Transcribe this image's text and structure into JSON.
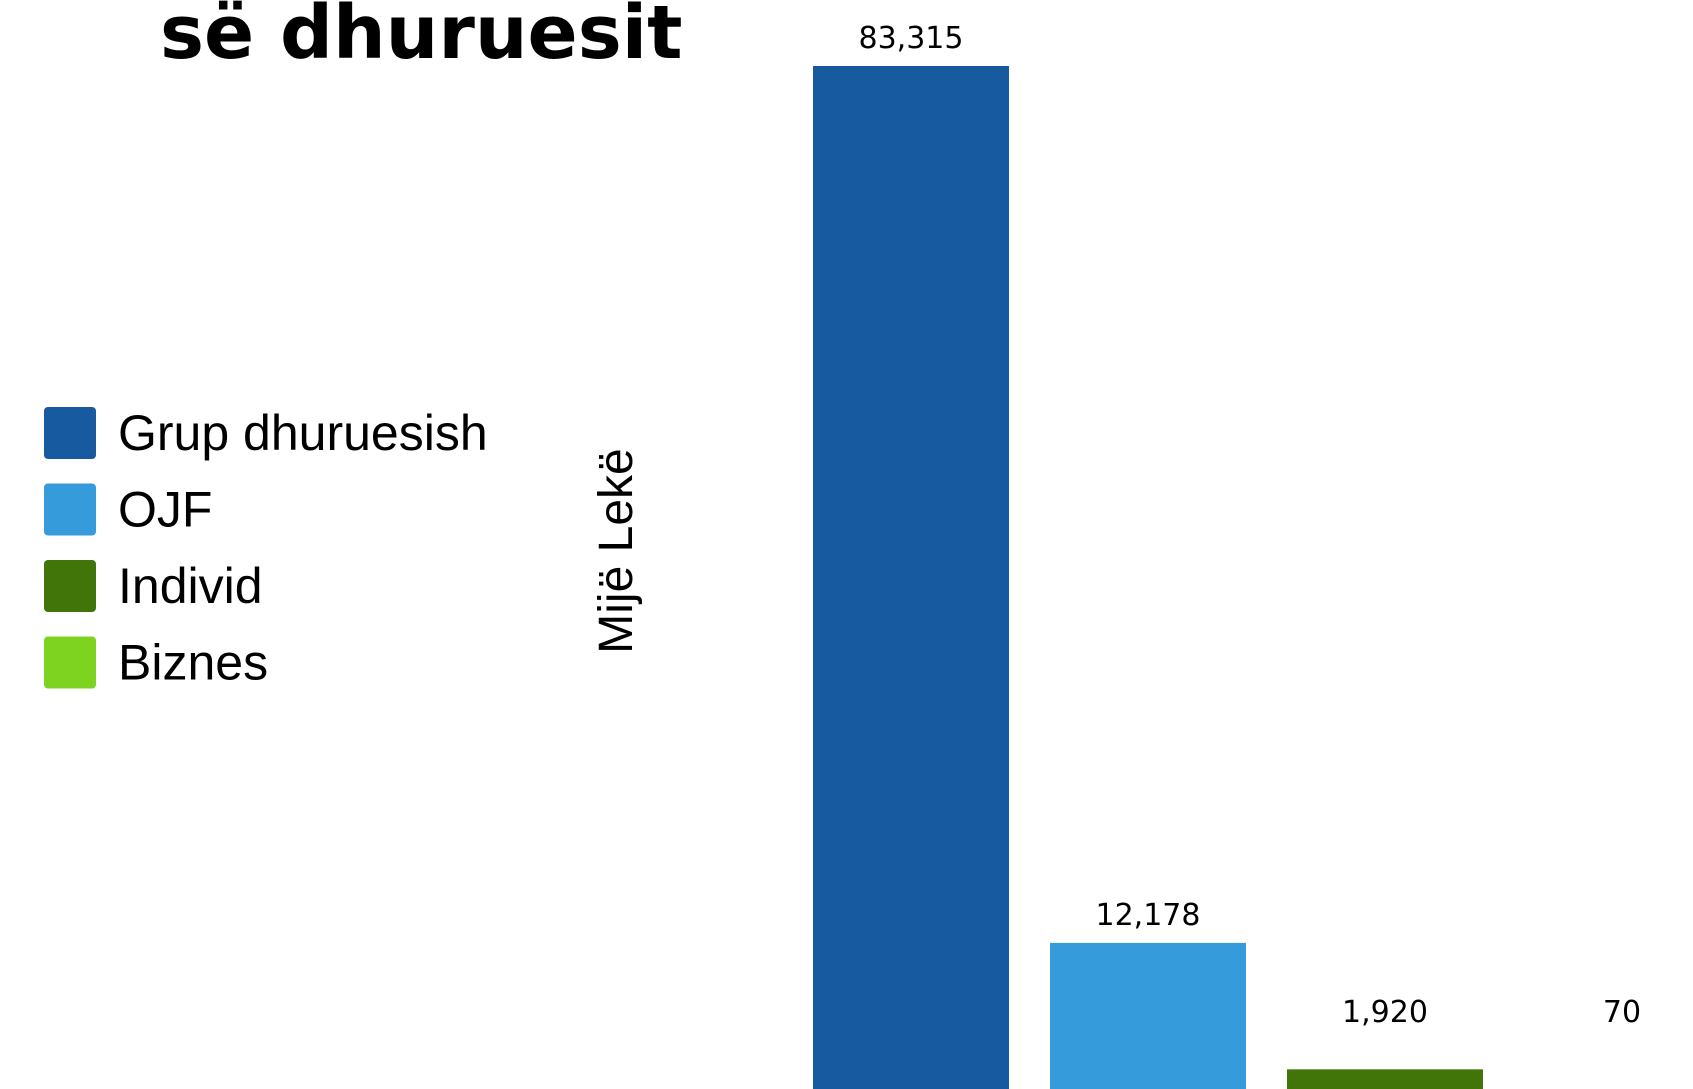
{
  "chart_data": {
    "type": "bar",
    "title": "së dhuruesit",
    "y_label": "Mijë Lekë",
    "categories": [
      "Grup dhuruesish",
      "OJF",
      "Individ",
      "Biznes"
    ],
    "values": [
      83315,
      12178,
      1920,
      70
    ],
    "value_labels": [
      "83,315",
      "12,178",
      "1,920",
      "70"
    ],
    "colors": [
      "#185a9f",
      "#369bdb",
      "#41750a",
      "#7ed321"
    ]
  }
}
